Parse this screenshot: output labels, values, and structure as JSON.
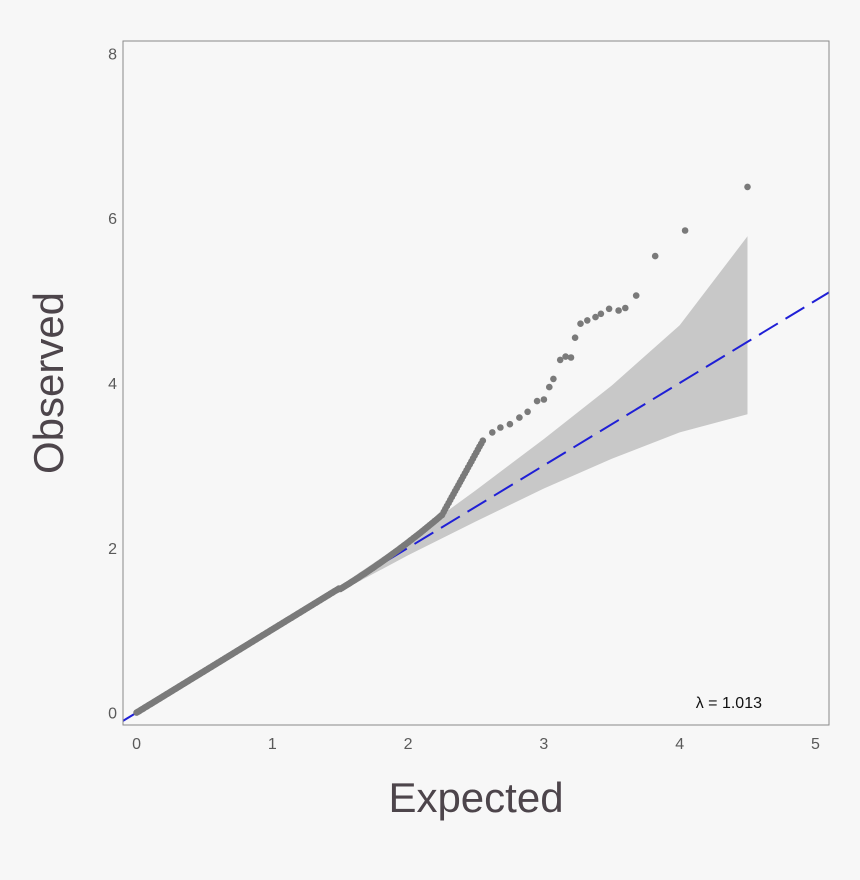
{
  "chart_data": {
    "type": "scatter",
    "title": "",
    "xlabel": "Expected",
    "ylabel": "Observed",
    "xlim": [
      -0.1,
      5.1
    ],
    "ylim": [
      -0.15,
      8.15
    ],
    "x_ticks": [
      "0",
      "1",
      "2",
      "3",
      "4",
      "5"
    ],
    "y_ticks": [
      "0",
      "2",
      "4",
      "6",
      "8"
    ],
    "grid": false,
    "annotation": "λ = 1.013",
    "colors": {
      "points": "#7a7a7a",
      "reference_line": "#1f1fd6",
      "confidence_band": "#c8c8c8",
      "background": "#f7f7f7",
      "frame": "#8a8a8a"
    },
    "reference_line": {
      "slope": 1.0,
      "intercept": 0.0,
      "style": "dashed"
    },
    "confidence_band": {
      "x": [
        1.5,
        2.0,
        2.5,
        3.0,
        3.5,
        4.0,
        4.5
      ],
      "lower": [
        1.47,
        1.91,
        2.32,
        2.72,
        3.08,
        3.4,
        3.62
      ],
      "upper": [
        1.54,
        2.1,
        2.7,
        3.32,
        3.97,
        4.7,
        5.78
      ]
    },
    "tail_points": {
      "x": [
        2.55,
        2.62,
        2.68,
        2.75,
        2.82,
        2.88,
        2.95,
        3.0,
        3.04,
        3.07,
        3.12,
        3.16,
        3.2,
        3.23,
        3.27,
        3.32,
        3.38,
        3.42,
        3.48,
        3.55,
        3.6,
        3.68,
        3.82,
        4.04,
        4.5
      ],
      "y": [
        3.3,
        3.4,
        3.46,
        3.5,
        3.58,
        3.65,
        3.78,
        3.8,
        3.95,
        4.05,
        4.28,
        4.32,
        4.31,
        4.55,
        4.72,
        4.76,
        4.8,
        4.84,
        4.9,
        4.88,
        4.91,
        5.06,
        5.54,
        5.85,
        6.38
      ]
    }
  }
}
